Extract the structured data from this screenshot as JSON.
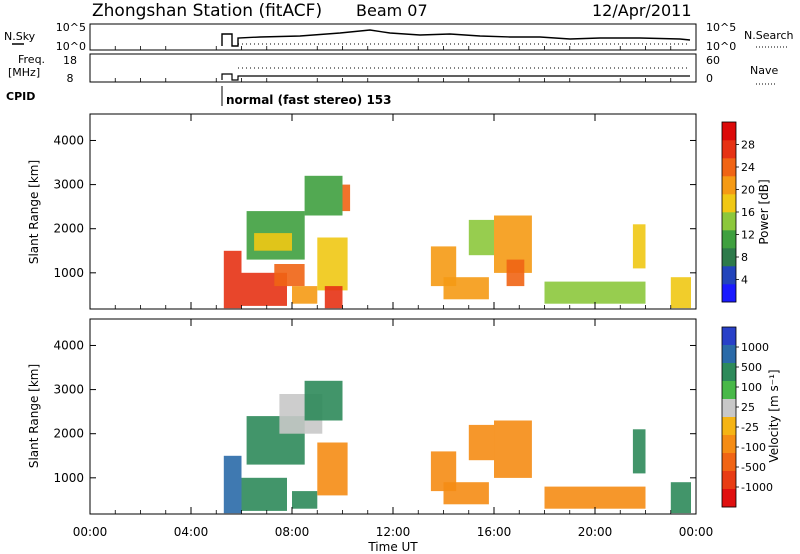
{
  "header": {
    "station_title": "Zhongshan Station (fitACF)",
    "beam": "Beam 07",
    "date": "12/Apr/2011"
  },
  "status_panels": {
    "nsky_label": "N.Sky",
    "nsky_ticks": [
      "10^5",
      "10^0"
    ],
    "nsearch_label": "N.Search",
    "nsearch_ticks": [
      "10^5",
      "10^0"
    ],
    "freq_label_line1": "Freq.",
    "freq_label_line2": "[MHz]",
    "freq_ticks": [
      "18",
      "8"
    ],
    "nave_label": "Nave",
    "nave_ticks": [
      "60",
      "0"
    ],
    "cpid_label": "CPID",
    "cpid_text": "normal (fast stereo) 153"
  },
  "power_panel": {
    "ylabel": "Slant Range [km]",
    "yticks": [
      "1000",
      "2000",
      "3000",
      "4000"
    ],
    "colorbar_label": "Power [dB]",
    "colorbar_ticks": [
      "4",
      "8",
      "12",
      "16",
      "20",
      "24",
      "28"
    ],
    "colorbar_colors": [
      "#1a1aff",
      "#2244bb",
      "#2d7a4a",
      "#3fa03f",
      "#8cc83c",
      "#f0c814",
      "#f59a14",
      "#f06414",
      "#e63214",
      "#dc0a0a"
    ]
  },
  "velocity_panel": {
    "ylabel": "Slant Range [km]",
    "yticks": [
      "1000",
      "2000",
      "3000",
      "4000"
    ],
    "colorbar_label": "Velocity [m s⁻¹]",
    "colorbar_ticks": [
      "1000",
      "500",
      "100",
      "25",
      "-25",
      "-100",
      "-500",
      "-1000"
    ],
    "colorbar_colors": [
      "#2840c8",
      "#2a6aa8",
      "#2d8a5a",
      "#48b848",
      "#c8c8c8",
      "#f5b414",
      "#f58c14",
      "#f06414",
      "#e83c14",
      "#e01010"
    ]
  },
  "xaxis": {
    "label": "Time UT",
    "ticks": [
      "00:00",
      "04:00",
      "08:00",
      "12:00",
      "16:00",
      "20:00",
      "00:00"
    ]
  },
  "chart_data": [
    {
      "type": "heatmap",
      "title": "Zhongshan Station (fitACF) Beam 07 12/Apr/2011",
      "xlabel": "Time UT",
      "ylabel": "Slant Range [km]",
      "colorbar": "Power [dB]",
      "xlim_hours": [
        0,
        24
      ],
      "ylim_km": [
        180,
        4600
      ],
      "zlim_db": [
        0,
        32
      ],
      "patches": [
        {
          "t0": 5.3,
          "t1": 6.0,
          "r0": 200,
          "r1": 1500,
          "v": 26
        },
        {
          "t0": 6.0,
          "t1": 7.8,
          "r0": 250,
          "r1": 1000,
          "v": 27
        },
        {
          "t0": 6.2,
          "t1": 8.5,
          "r0": 1300,
          "r1": 2400,
          "v": 12
        },
        {
          "t0": 6.5,
          "t1": 8.0,
          "r0": 1500,
          "r1": 1900,
          "v": 18
        },
        {
          "t0": 7.3,
          "t1": 8.5,
          "r0": 700,
          "r1": 1200,
          "v": 24
        },
        {
          "t0": 8.0,
          "t1": 9.0,
          "r0": 300,
          "r1": 700,
          "v": 20
        },
        {
          "t0": 8.5,
          "t1": 10.0,
          "r0": 2300,
          "r1": 3200,
          "v": 10
        },
        {
          "t0": 9.0,
          "t1": 10.2,
          "r0": 600,
          "r1": 1800,
          "v": 16
        },
        {
          "t0": 9.3,
          "t1": 10.0,
          "r0": 200,
          "r1": 700,
          "v": 27
        },
        {
          "t0": 10.0,
          "t1": 10.3,
          "r0": 2400,
          "r1": 3000,
          "v": 24
        },
        {
          "t0": 13.5,
          "t1": 14.5,
          "r0": 700,
          "r1": 1600,
          "v": 20
        },
        {
          "t0": 14.0,
          "t1": 15.8,
          "r0": 400,
          "r1": 900,
          "v": 22
        },
        {
          "t0": 15.0,
          "t1": 16.0,
          "r0": 1400,
          "r1": 2200,
          "v": 14
        },
        {
          "t0": 16.0,
          "t1": 17.5,
          "r0": 1000,
          "r1": 2300,
          "v": 21
        },
        {
          "t0": 16.5,
          "t1": 17.2,
          "r0": 700,
          "r1": 1300,
          "v": 25
        },
        {
          "t0": 18.0,
          "t1": 22.0,
          "r0": 300,
          "r1": 800,
          "v": 14
        },
        {
          "t0": 21.5,
          "t1": 22.0,
          "r0": 1100,
          "r1": 2100,
          "v": 18
        },
        {
          "t0": 23.0,
          "t1": 23.8,
          "r0": 200,
          "r1": 900,
          "v": 16
        }
      ]
    },
    {
      "type": "heatmap",
      "title": "Zhongshan Station (fitACF) Beam 07 12/Apr/2011",
      "xlabel": "Time UT",
      "ylabel": "Slant Range [km]",
      "colorbar": "Velocity [m s⁻¹]",
      "xlim_hours": [
        0,
        24
      ],
      "ylim_km": [
        180,
        4600
      ],
      "patches": [
        {
          "t0": 5.3,
          "t1": 6.0,
          "r0": 200,
          "r1": 1500,
          "v": 600
        },
        {
          "t0": 6.0,
          "t1": 7.8,
          "r0": 250,
          "r1": 1000,
          "v": 150
        },
        {
          "t0": 6.2,
          "t1": 8.5,
          "r0": 1300,
          "r1": 2400,
          "v": 300
        },
        {
          "t0": 7.5,
          "t1": 9.2,
          "r0": 2000,
          "r1": 2900,
          "v": 0
        },
        {
          "t0": 8.0,
          "t1": 9.0,
          "r0": 300,
          "r1": 700,
          "v": 200
        },
        {
          "t0": 8.5,
          "t1": 10.0,
          "r0": 2300,
          "r1": 3200,
          "v": 400
        },
        {
          "t0": 9.0,
          "t1": 10.2,
          "r0": 600,
          "r1": 1800,
          "v": -250
        },
        {
          "t0": 13.5,
          "t1": 14.5,
          "r0": 700,
          "r1": 1600,
          "v": -300
        },
        {
          "t0": 14.0,
          "t1": 15.8,
          "r0": 400,
          "r1": 900,
          "v": -150
        },
        {
          "t0": 15.0,
          "t1": 16.0,
          "r0": 1400,
          "r1": 2200,
          "v": -300
        },
        {
          "t0": 16.0,
          "t1": 17.5,
          "r0": 1000,
          "r1": 2300,
          "v": -200
        },
        {
          "t0": 18.0,
          "t1": 22.0,
          "r0": 300,
          "r1": 800,
          "v": -150
        },
        {
          "t0": 21.5,
          "t1": 22.0,
          "r0": 1100,
          "r1": 2100,
          "v": 100
        },
        {
          "t0": 23.0,
          "t1": 23.8,
          "r0": 200,
          "r1": 900,
          "v": 300
        }
      ]
    }
  ]
}
